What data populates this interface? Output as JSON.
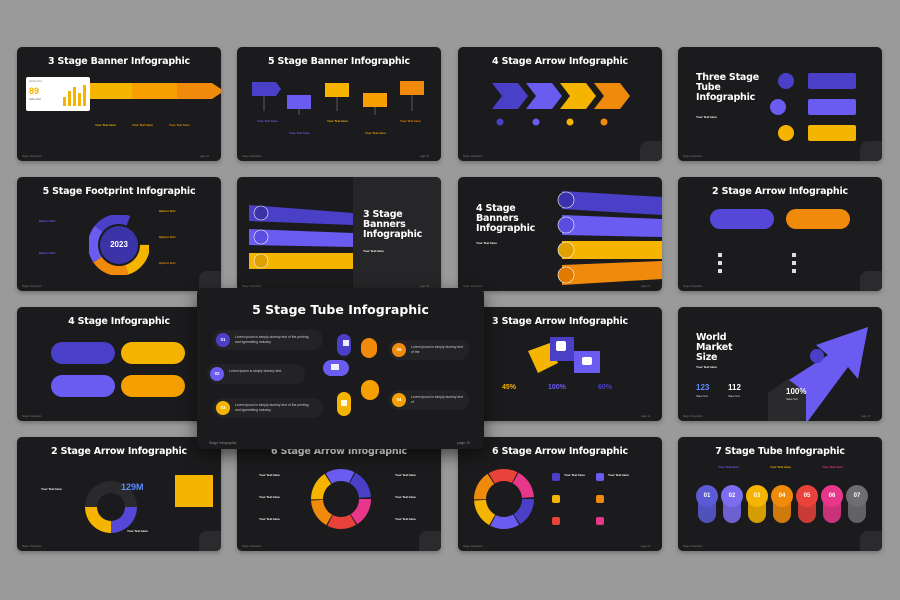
{
  "slides": [
    {
      "title": "3 Stage Banner Infographic",
      "footer": "Stage Infographic",
      "page": "page 01",
      "card_label": "Global Size",
      "card_value": "89",
      "card_sub": "Value Text",
      "item_label": "Your Text Here"
    },
    {
      "title": "5 Stage Banner Infographic",
      "footer": "Stage Infographic",
      "page": "page 02",
      "item_label": "Your Text Here"
    },
    {
      "title": "4 Stage Arrow Infographic",
      "footer": "Stage Infographic",
      "page": "page 03"
    },
    {
      "title": "Three Stage Tube Infographic",
      "footer": "Stage Infographic",
      "page": "page 04",
      "item_label": "Your Text Here"
    },
    {
      "title": "5 Stage Footprint Infographic",
      "footer": "Stage Infographic",
      "page": "page 05",
      "center": "2023",
      "item_label": "Option Text"
    },
    {
      "title": "3 Stage Banners Infographic",
      "footer": "Stage Infographic",
      "page": "page 06",
      "item_label": "Your Text Here"
    },
    {
      "title": "4 Stage Banners Infographic",
      "footer": "Stage Infographic",
      "page": "page 07",
      "item_label": "Your Text Here"
    },
    {
      "title": "2 Stage Arrow Infographic",
      "footer": "Stage Infographic",
      "page": "page 08"
    },
    {
      "title": "4 Stage Infographic",
      "footer": "Stage Infographic",
      "page": "page 09"
    },
    {
      "title": "3 Stage Arrow Infographic",
      "footer": "Stage Infographic",
      "page": "page 11",
      "values": [
        "45%",
        "100%",
        "60%"
      ]
    },
    {
      "title": "World Market Size",
      "footer": "Stage Infographic",
      "page": "page 12",
      "item_label": "Your Text Here",
      "stats": [
        "123",
        "112",
        "100%"
      ],
      "stat_labels": [
        "Value Text",
        "Value Text",
        "Value Text"
      ]
    },
    {
      "title": "2 Stage Arrow Infographic",
      "footer": "Stage Infographic",
      "page": "page 13",
      "value": "129M",
      "item_label": "Your Text Here"
    },
    {
      "title": "6 Stage Arrow Infographic",
      "footer": "Stage Infographic",
      "page": "page 14",
      "item_label": "Your Text Here"
    },
    {
      "title": "6 Stage Arrow Infographic",
      "footer": "Stage Infographic",
      "page": "page 15",
      "item_label": "Your Text Here"
    },
    {
      "title": "7 Stage Tube Infographic",
      "footer": "Stage Infographic",
      "page": "page 16",
      "numbers": [
        "01",
        "02",
        "03",
        "04",
        "05",
        "06",
        "07"
      ],
      "item_label": "Your Text Here"
    }
  ],
  "feature": {
    "title": "5 Stage Tube Infographic",
    "footer": "Stage Infographic",
    "page": "page 10",
    "items": [
      {
        "num": "01",
        "text": "Lorem ipsum is simply dummy text of the printing and typesetting industry."
      },
      {
        "num": "02",
        "text": "Lorem Ipsum is simply dummy text."
      },
      {
        "num": "03",
        "text": "Lorem ipsum is simply dummy text of the printing and typesetting industry."
      },
      {
        "num": "05",
        "text": "Lorem ipsum is simply dummy text of the"
      },
      {
        "num": "04",
        "text": "Lorem ipsum is simply dummy text of"
      }
    ]
  },
  "colors": {
    "background": "#9a9a9a",
    "slide": "#1b1b1d",
    "purple": "#5b5bd6",
    "violet": "#7b6cf0",
    "yellow": "#f5b400",
    "orange": "#f08a0a",
    "pink": "#e8378a",
    "red": "#e8423a",
    "gray": "#6e6e72"
  }
}
